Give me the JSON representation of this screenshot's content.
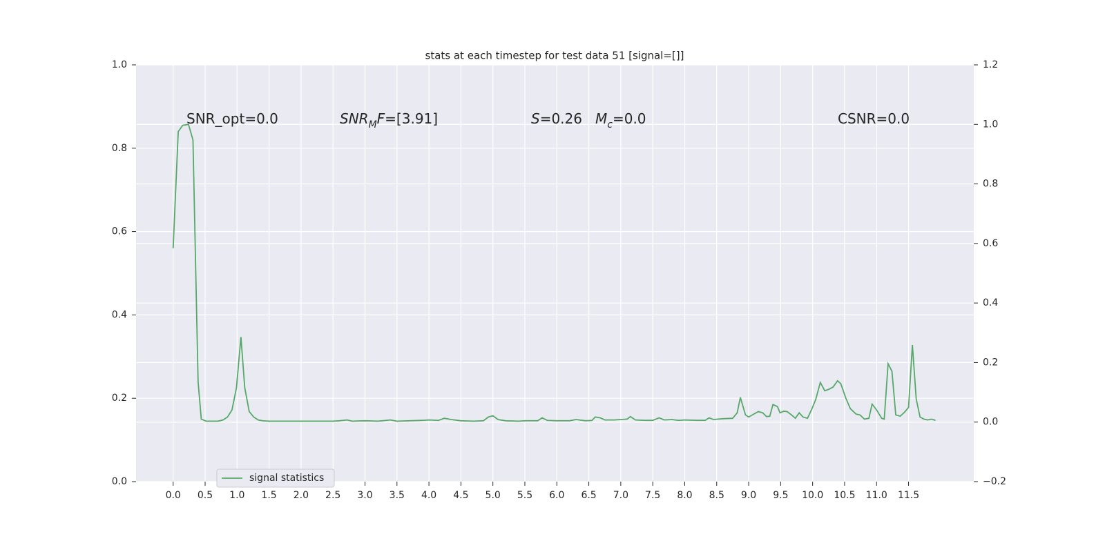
{
  "chart_data": {
    "type": "line",
    "title": "stats at each timestep for test data 51 [signal=[]]",
    "annotations": [
      {
        "parts": [
          {
            "text": "SNR_opt=0.0"
          }
        ]
      },
      {
        "parts": [
          {
            "text": "SNR",
            "italic": true
          },
          {
            "text": "M",
            "italic": true,
            "sub": true
          },
          {
            "text": "F",
            "italic": true
          },
          {
            "text": "=[3.91]"
          }
        ]
      },
      {
        "parts": [
          {
            "text": "S",
            "italic": true
          },
          {
            "text": "=0.26"
          }
        ]
      },
      {
        "parts": [
          {
            "text": "M",
            "italic": true
          },
          {
            "text": "c",
            "italic": true,
            "sub": true
          },
          {
            "text": "=0.0"
          }
        ]
      },
      {
        "parts": [
          {
            "text": "CSNR=0.0"
          }
        ]
      }
    ],
    "x": [
      0,
      0.08,
      0.15,
      0.24,
      0.31,
      0.39,
      0.44,
      0.52,
      0.6,
      0.7,
      0.78,
      0.85,
      0.92,
      0.99,
      1.06,
      1.12,
      1.19,
      1.26,
      1.33,
      1.4,
      1.5,
      1.8,
      2.0,
      2.3,
      2.5,
      2.6,
      2.72,
      2.8,
      3.0,
      3.2,
      3.4,
      3.5,
      3.7,
      3.9,
      4.0,
      4.15,
      4.24,
      4.35,
      4.5,
      4.7,
      4.85,
      4.93,
      5.0,
      5.08,
      5.2,
      5.4,
      5.5,
      5.7,
      5.77,
      5.85,
      6.0,
      6.2,
      6.3,
      6.45,
      6.55,
      6.6,
      6.68,
      6.75,
      6.9,
      7.0,
      7.1,
      7.15,
      7.23,
      7.4,
      7.5,
      7.6,
      7.68,
      7.8,
      7.9,
      8.0,
      8.2,
      8.32,
      8.38,
      8.45,
      8.6,
      8.75,
      8.82,
      8.87,
      8.95,
      9.0,
      9.08,
      9.15,
      9.22,
      9.28,
      9.33,
      9.38,
      9.45,
      9.49,
      9.55,
      9.6,
      9.67,
      9.73,
      9.79,
      9.85,
      9.92,
      9.99,
      10.05,
      10.12,
      10.19,
      10.26,
      10.32,
      10.39,
      10.44,
      10.52,
      10.59,
      10.68,
      10.74,
      10.81,
      10.88,
      10.93,
      11.0,
      11.08,
      11.12,
      11.18,
      11.24,
      11.3,
      11.37,
      11.44,
      11.5,
      11.56,
      11.62,
      11.68,
      11.74,
      11.8,
      11.86,
      11.92
    ],
    "series": [
      {
        "name": "signal statistics",
        "color": "#55a868",
        "values": [
          0.56,
          0.84,
          0.855,
          0.857,
          0.82,
          0.24,
          0.15,
          0.145,
          0.145,
          0.145,
          0.148,
          0.155,
          0.172,
          0.225,
          0.347,
          0.225,
          0.168,
          0.155,
          0.148,
          0.146,
          0.145,
          0.145,
          0.145,
          0.145,
          0.145,
          0.146,
          0.148,
          0.145,
          0.146,
          0.145,
          0.148,
          0.145,
          0.146,
          0.147,
          0.148,
          0.147,
          0.152,
          0.149,
          0.146,
          0.145,
          0.146,
          0.155,
          0.158,
          0.149,
          0.146,
          0.145,
          0.146,
          0.146,
          0.153,
          0.147,
          0.146,
          0.146,
          0.149,
          0.146,
          0.147,
          0.155,
          0.153,
          0.148,
          0.148,
          0.149,
          0.15,
          0.156,
          0.148,
          0.147,
          0.147,
          0.153,
          0.148,
          0.149,
          0.147,
          0.148,
          0.147,
          0.147,
          0.153,
          0.149,
          0.151,
          0.152,
          0.165,
          0.202,
          0.16,
          0.155,
          0.162,
          0.168,
          0.165,
          0.156,
          0.157,
          0.185,
          0.18,
          0.165,
          0.169,
          0.168,
          0.16,
          0.152,
          0.165,
          0.155,
          0.152,
          0.175,
          0.198,
          0.238,
          0.218,
          0.222,
          0.227,
          0.242,
          0.235,
          0.2,
          0.175,
          0.162,
          0.16,
          0.15,
          0.152,
          0.186,
          0.172,
          0.152,
          0.15,
          0.283,
          0.265,
          0.16,
          0.157,
          0.167,
          0.178,
          0.328,
          0.198,
          0.155,
          0.15,
          0.148,
          0.15,
          0.147
        ]
      }
    ],
    "xlim": [
      -0.58,
      12.52
    ],
    "xticks": [
      {
        "value": 0,
        "label": "0.0"
      },
      0.5,
      {
        "value": 1,
        "label": "1.0"
      },
      1.5,
      {
        "value": 2,
        "label": "2.0"
      },
      2.5,
      {
        "value": 3,
        "label": "3.0"
      },
      3.5,
      {
        "value": 4,
        "label": "4.0"
      },
      4.5,
      {
        "value": 5,
        "label": "5.0"
      },
      5.5,
      {
        "value": 6,
        "label": "6.0"
      },
      6.5,
      {
        "value": 7,
        "label": "7.0"
      },
      7.5,
      {
        "value": 8,
        "label": "8.0"
      },
      8.5,
      {
        "value": 9,
        "label": "9.0"
      },
      9.5,
      {
        "value": 10,
        "label": "10.0"
      },
      10.5,
      {
        "value": 11,
        "label": "11.0"
      },
      11.5
    ],
    "ylim": [
      0,
      1
    ],
    "yticks": [
      {
        "value": 0,
        "label": "0.0"
      },
      0.2,
      0.4,
      0.6,
      0.8,
      {
        "value": 1,
        "label": "1.0"
      }
    ],
    "y2lim": [
      -0.2,
      1.2
    ],
    "y2ticks": [
      {
        "value": -0.2,
        "label": "−0.2"
      },
      {
        "value": 0,
        "label": "0.0"
      },
      0.2,
      0.4,
      0.6,
      0.8,
      {
        "value": 1,
        "label": "1.0"
      },
      1.2
    ],
    "grid": true,
    "legend": "lower left"
  }
}
